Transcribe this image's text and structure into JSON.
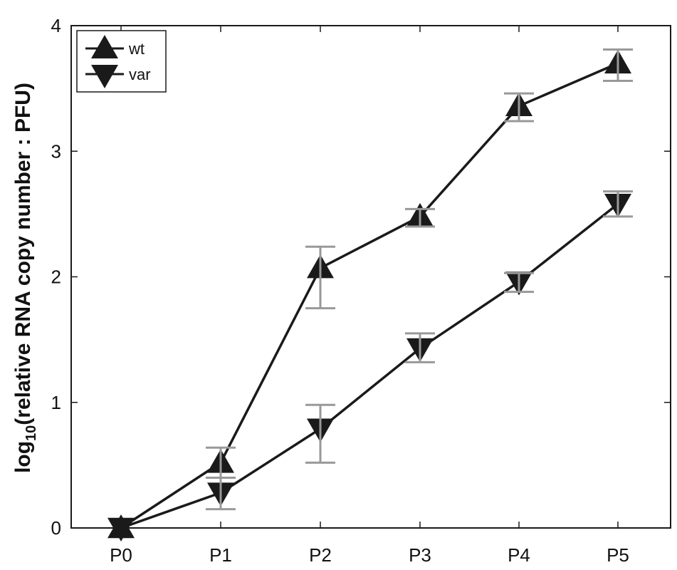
{
  "chart_data": {
    "type": "line",
    "title": "",
    "xlabel": "",
    "ylabel_prefix": "log",
    "ylabel_subscript": "10",
    "ylabel_rest": "(relative RNA copy number : PFU)",
    "categories": [
      "P0",
      "P1",
      "P2",
      "P3",
      "P4",
      "P5"
    ],
    "ylim": [
      0,
      4
    ],
    "yticks": [
      "0",
      "1",
      "2",
      "3",
      "4"
    ],
    "grid": false,
    "legend_position": "top-left",
    "series": [
      {
        "name": "wt",
        "marker": "triangle-up",
        "values": [
          0,
          0.52,
          2.07,
          2.48,
          3.36,
          3.7
        ],
        "err_low": [
          0,
          0.4,
          1.75,
          2.4,
          3.24,
          3.56
        ],
        "err_high": [
          0,
          0.64,
          2.24,
          2.54,
          3.46,
          3.81
        ]
      },
      {
        "name": "var",
        "marker": "triangle-down",
        "values": [
          0,
          0.28,
          0.79,
          1.43,
          1.96,
          2.58
        ],
        "err_low": [
          0,
          0.15,
          0.52,
          1.32,
          1.88,
          2.48
        ],
        "err_high": [
          0,
          0.4,
          0.98,
          1.55,
          2.03,
          2.68
        ]
      }
    ],
    "colors": {
      "line": "#1a1a1a",
      "marker": "#1a1a1a",
      "errorbar": "#999999",
      "axis": "#1a1a1a"
    }
  }
}
